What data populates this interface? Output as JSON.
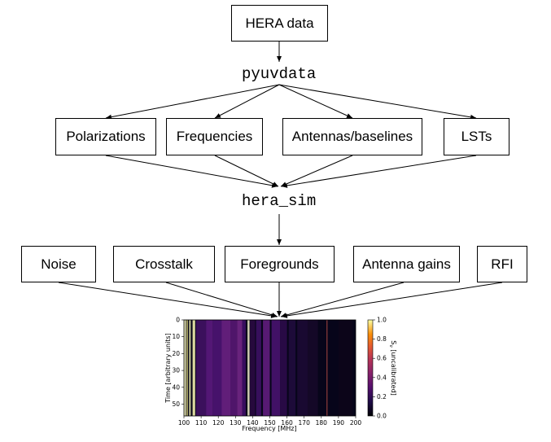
{
  "top_box": "HERA data",
  "middle_labels": {
    "first": "pyuvdata",
    "second": "hera_sim"
  },
  "parameter_boxes": [
    "Polarizations",
    "Frequencies",
    "Antennas/baselines",
    "LSTs"
  ],
  "effect_boxes": [
    "Noise",
    "Crosstalk",
    "Foregrounds",
    "Antenna gains",
    "RFI"
  ],
  "chart_data": {
    "type": "heatmap",
    "xlabel": "Frequency [MHz]",
    "ylabel": "Time [arbitrary units]",
    "colorbar_label": "S_v [uncalibrated]",
    "x_ticks": [
      "100",
      "110",
      "120",
      "130",
      "140",
      "150",
      "160",
      "170",
      "180",
      "190",
      "200"
    ],
    "y_ticks": [
      "0",
      "10",
      "20",
      "30",
      "40",
      "50"
    ],
    "colorbar_ticks": [
      "0.0",
      "0.2",
      "0.4",
      "0.6",
      "0.8",
      "1.0"
    ],
    "xlim": [
      100,
      200
    ],
    "ylim": [
      57,
      0
    ],
    "vlim": [
      0,
      1
    ],
    "colormap": "inferno"
  }
}
